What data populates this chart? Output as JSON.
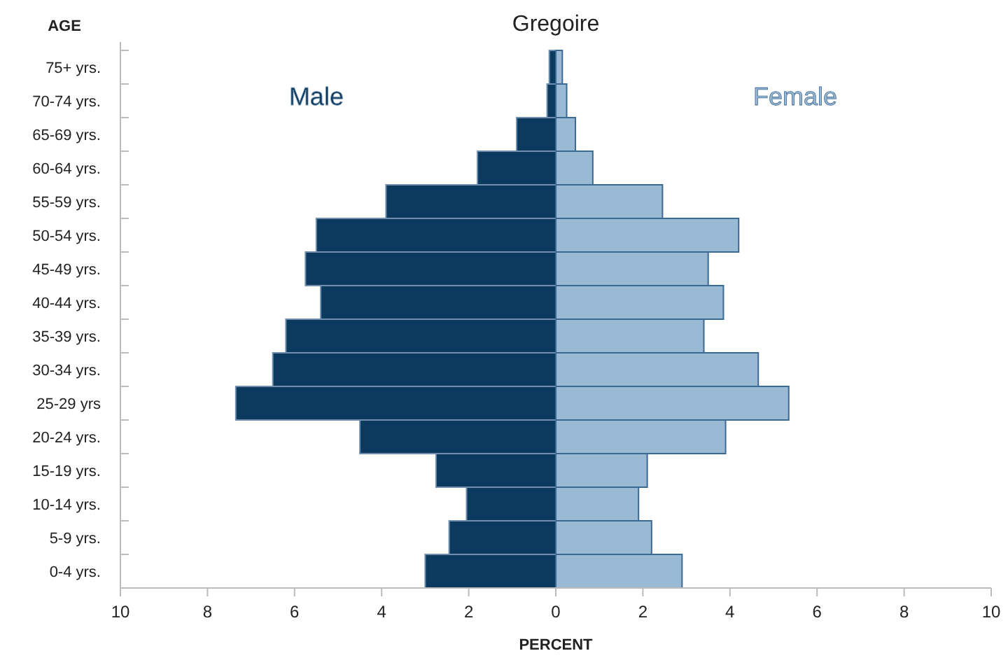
{
  "chart_data": {
    "type": "bar",
    "orientation": "horizontal",
    "stacked": true,
    "title": "Gregoire",
    "ylabel": "AGE",
    "xlabel": "PERCENT",
    "categories": [
      "75+ yrs.",
      "70-74 yrs.",
      "65-69 yrs.",
      "60-64 yrs.",
      "55-59 yrs.",
      "50-54 yrs.",
      "45-49 yrs.",
      "40-44 yrs.",
      "35-39 yrs.",
      "30-34 yrs.",
      "25-29 yrs",
      "20-24 yrs.",
      "15-19 yrs.",
      "10-14 yrs.",
      "5-9 yrs.",
      "0-4 yrs."
    ],
    "series": [
      {
        "name": "Male",
        "color": "#0b3a5e",
        "values": [
          -0.15,
          -0.2,
          -0.9,
          -1.8,
          -3.9,
          -5.5,
          -5.75,
          -5.4,
          -6.2,
          -6.5,
          -7.35,
          -4.5,
          -2.75,
          -2.05,
          -2.45,
          -3.0
        ]
      },
      {
        "name": "Female",
        "color": "#9ab9d4",
        "values": [
          0.15,
          0.25,
          0.45,
          0.85,
          2.45,
          4.2,
          3.5,
          3.85,
          3.4,
          4.65,
          5.35,
          3.9,
          2.1,
          1.9,
          2.2,
          2.9
        ]
      }
    ],
    "xlim": [
      -10,
      10
    ],
    "xticks": [
      {
        "value": -10,
        "label": "10"
      },
      {
        "value": -8,
        "label": "8"
      },
      {
        "value": -6,
        "label": "6"
      },
      {
        "value": -4,
        "label": "4"
      },
      {
        "value": -2,
        "label": "2"
      },
      0,
      2,
      4,
      6,
      8,
      10
    ],
    "grid": false
  }
}
